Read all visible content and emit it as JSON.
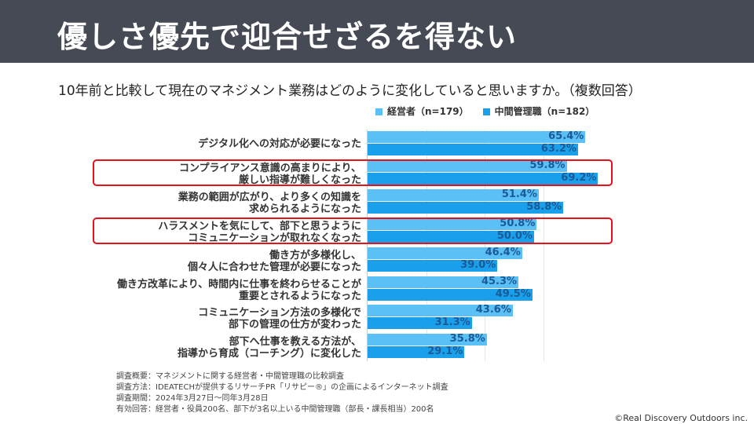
{
  "title": "優しさ優先で迎合せざるを得ない",
  "question": "10年前と比較して現在のマネジメント業務はどのように変化していると思いますか。（複数回答）",
  "legend": [
    {
      "label": "経営者（n=179）",
      "color": "#5bc0f5"
    },
    {
      "label": "中間管理職（n=182）",
      "color": "#1aa0ea"
    }
  ],
  "chart_data": {
    "type": "bar",
    "orientation": "horizontal",
    "categories": [
      [
        "デジタル化への対応が必要になった"
      ],
      [
        "コンプライアンス意識の高まりにより、",
        "厳しい指導が難しくなった"
      ],
      [
        "業務の範囲が広がり、より多くの知識を",
        "求められるようになった"
      ],
      [
        "ハラスメントを気にして、部下と思うように",
        "コミュニケーションが取れなくなった"
      ],
      [
        "働き方が多様化し、",
        "個々人に合わせた管理が必要になった"
      ],
      [
        "働き方改革により、時間内に仕事を終わらせることが",
        "重要とされるようになった"
      ],
      [
        "コミュニケーション方法の多様化で",
        "部下の管理の仕方が変わった"
      ],
      [
        "部下へ仕事を教える方法が、",
        "指導から育成（コーチング）に変化した"
      ]
    ],
    "series": [
      {
        "name": "経営者（n=179）",
        "values": [
          65.4,
          59.8,
          51.4,
          50.8,
          46.4,
          45.3,
          43.6,
          35.8
        ],
        "labels": [
          "65.4%",
          "59.8%",
          "51.4%",
          "50.8%",
          "46.4%",
          "45.3%",
          "43.6%",
          "35.8%"
        ]
      },
      {
        "name": "中間管理職（n=182）",
        "values": [
          63.2,
          69.2,
          58.8,
          50.0,
          39.0,
          49.5,
          31.3,
          29.1
        ],
        "labels": [
          "63.2%",
          "69.2%",
          "58.8%",
          "50.0%",
          "39.0%",
          "49.5%",
          "31.3%",
          "29.1%"
        ]
      }
    ],
    "highlighted": [
      1,
      3
    ],
    "unit": "%"
  },
  "notes": [
    "調査概要：マネジメントに関する経営者・中間管理職の比較調査",
    "調査方法：IDEATECHが提供するリサーチPR「リサピー®」の企画によるインターネット調査",
    "調査期間：2024年3月27日〜同年3月28日",
    "有効回答：経営者・役員200名、部下が3名以上いる中間管理職（部長・課長相当）200名"
  ],
  "copyright": "©Real Discovery Outdoors inc."
}
